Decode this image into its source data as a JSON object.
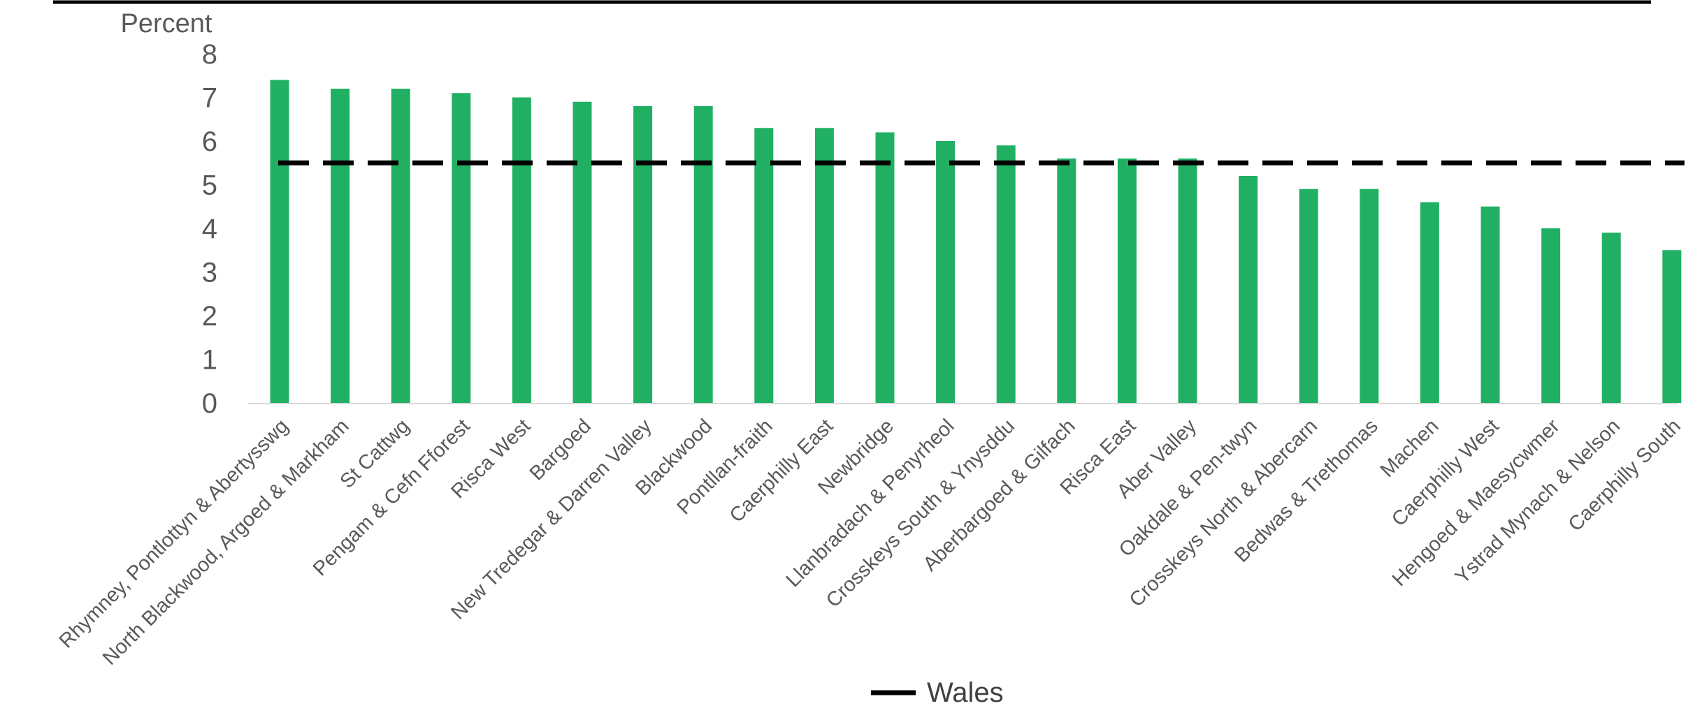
{
  "chart_data": {
    "type": "bar",
    "ylabel": "Percent",
    "ylim": [
      0,
      8
    ],
    "yticks": [
      0,
      1,
      2,
      3,
      4,
      5,
      6,
      7,
      8
    ],
    "grid": false,
    "legend_position": "bottom",
    "categories": [
      "Rhymney, Pontlottyn & Abertysswg",
      "North Blackwood, Argoed & Markham",
      "St Cattwg",
      "Pengam & Cefn Fforest",
      "Risca West",
      "Bargoed",
      "New Tredegar & Darren Valley",
      "Blackwood",
      "Pontllan-fraith",
      "Caerphilly East",
      "Newbridge",
      "Llanbradach & Penyrheol",
      "Crosskeys South & Ynysddu",
      "Aberbargoed & Gilfach",
      "Risca East",
      "Aber Valley",
      "Oakdale & Pen-twyn",
      "Crosskeys North & Abercarn",
      "Bedwas & Trethomas",
      "Machen",
      "Caerphilly West",
      "Hengoed & Maesycwmer",
      "Ystrad Mynach & Nelson",
      "Caerphilly South"
    ],
    "values": [
      7.4,
      7.2,
      7.2,
      7.1,
      7.0,
      6.9,
      6.8,
      6.8,
      6.3,
      6.3,
      6.2,
      6.0,
      5.9,
      5.6,
      5.6,
      5.6,
      5.2,
      4.9,
      4.9,
      4.6,
      4.5,
      4.0,
      3.9,
      3.5
    ],
    "reference_line": {
      "name": "Wales",
      "value": 5.5,
      "style": "dashed"
    },
    "colors": {
      "bar": "#21b063",
      "reference": "#000000",
      "axis_text": "#595959",
      "top_rule": "#000000",
      "baseline": "#d9d9d9"
    }
  }
}
